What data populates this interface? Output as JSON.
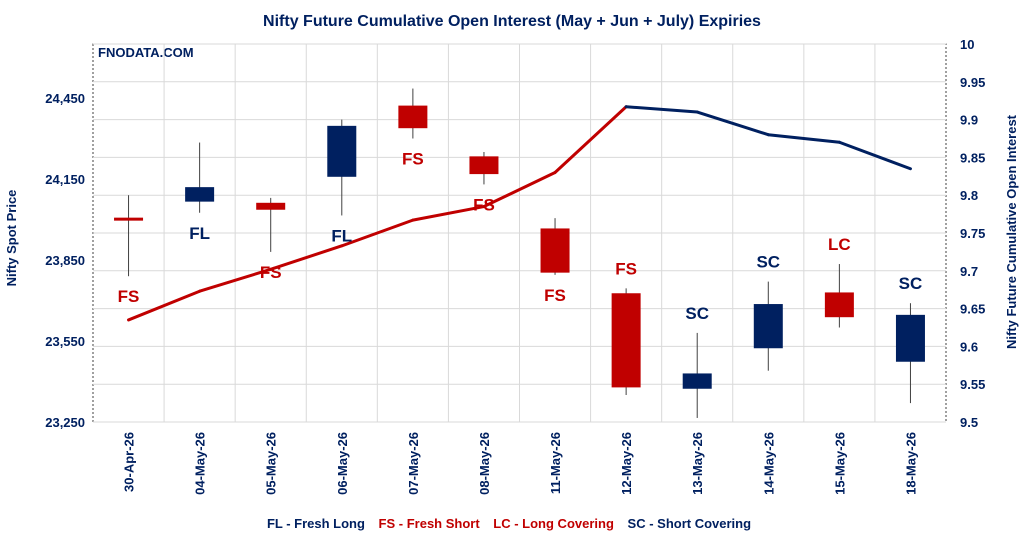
{
  "chart_data": {
    "type": "candlestick+line",
    "title": "Nifty Future Cumulative Open Interest (May + Jun + July) Expiries",
    "watermark": "FNODATA.COM",
    "ylabel_left": "Nifty Spot Price",
    "ylabel_right": "Nifty Future Cumulative Open Interest",
    "ylim_left": [
      23250,
      24650
    ],
    "yticks_left": [
      23250,
      23550,
      23850,
      24150,
      24450
    ],
    "ytick_labels_left": [
      "23,250",
      "23,550",
      "23,850",
      "24,150",
      "24,450"
    ],
    "ylim_right": [
      9.5,
      10
    ],
    "yticks_right": [
      9.5,
      9.55,
      9.6,
      9.65,
      9.7,
      9.75,
      9.8,
      9.85,
      9.9,
      9.95,
      10
    ],
    "ytick_labels_right": [
      "9.5",
      "9.55",
      "9.6",
      "9.65",
      "9.7",
      "9.75",
      "9.8",
      "9.85",
      "9.9",
      "9.95",
      "10"
    ],
    "categories": [
      "30-Apr-26",
      "04-May-26",
      "05-May-26",
      "06-May-26",
      "07-May-26",
      "08-May-26",
      "11-May-26",
      "12-May-26",
      "13-May-26",
      "14-May-26",
      "15-May-26",
      "18-May-26"
    ],
    "candles": [
      {
        "open": 24005,
        "high": 24090,
        "low": 23790,
        "close": 24000,
        "label": "FS",
        "label_pos": "below"
      },
      {
        "open": 24068,
        "high": 24285,
        "low": 24025,
        "close": 24118,
        "label": "FL",
        "label_pos": "below"
      },
      {
        "open": 24060,
        "high": 24080,
        "low": 23880,
        "close": 24038,
        "label": "FS",
        "label_pos": "below"
      },
      {
        "open": 24160,
        "high": 24370,
        "low": 24015,
        "close": 24345,
        "label": "FL",
        "label_pos": "below"
      },
      {
        "open": 24420,
        "high": 24485,
        "low": 24300,
        "close": 24340,
        "label": "FS",
        "label_pos": "below"
      },
      {
        "open": 24232,
        "high": 24250,
        "low": 24130,
        "close": 24170,
        "label": "FS",
        "label_pos": "below"
      },
      {
        "open": 23965,
        "high": 24005,
        "low": 23795,
        "close": 23805,
        "label": "FS",
        "label_pos": "below"
      },
      {
        "open": 23725,
        "high": 23745,
        "low": 23350,
        "close": 23380,
        "label": "FS",
        "label_pos": "above"
      },
      {
        "open": 23375,
        "high": 23580,
        "low": 23265,
        "close": 23428,
        "label": "SC",
        "label_pos": "above"
      },
      {
        "open": 23525,
        "high": 23770,
        "low": 23440,
        "close": 23685,
        "label": "SC",
        "label_pos": "above"
      },
      {
        "open": 23728,
        "high": 23835,
        "low": 23600,
        "close": 23640,
        "label": "LC",
        "label_pos": "above"
      },
      {
        "open": 23475,
        "high": 23690,
        "low": 23320,
        "close": 23645,
        "label": "SC",
        "label_pos": "above"
      }
    ],
    "open_interest": [
      9.635,
      9.673,
      9.702,
      9.733,
      9.767,
      9.785,
      9.83,
      9.917,
      9.91,
      9.88,
      9.87,
      9.835
    ],
    "legend": [
      {
        "text": "FL - Fresh Long",
        "color": "#002060"
      },
      {
        "text": "FS - Fresh Short",
        "color": "#c00000"
      },
      {
        "text": "LC - Long Covering",
        "color": "#c00000"
      },
      {
        "text": "SC - Short Covering",
        "color": "#002060"
      }
    ],
    "legend_position": "bottom",
    "colors": {
      "bullish": "#002060",
      "bearish": "#c00000",
      "oi_up": "#c00000",
      "oi_down": "#002060",
      "grid": "#d9d9d9",
      "text": "#002060"
    },
    "grid": true
  }
}
